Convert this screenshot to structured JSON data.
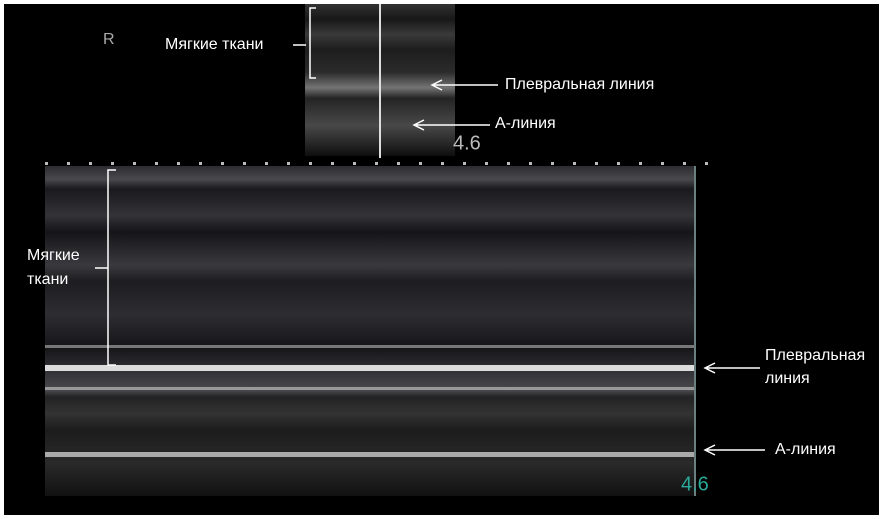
{
  "top_view": {
    "orientation_marker": "R",
    "soft_tissue_label": "Мягкие ткани",
    "pleural_line_label": "Плевральная линия",
    "a_line_label": "А-линия",
    "depth": "4.6"
  },
  "m_mode": {
    "soft_tissue_label": [
      "Мягкие",
      "ткани"
    ],
    "pleural_line_label": [
      "Плевральная",
      "линия"
    ],
    "a_line_label": "А-линия",
    "depth": "4.6"
  }
}
